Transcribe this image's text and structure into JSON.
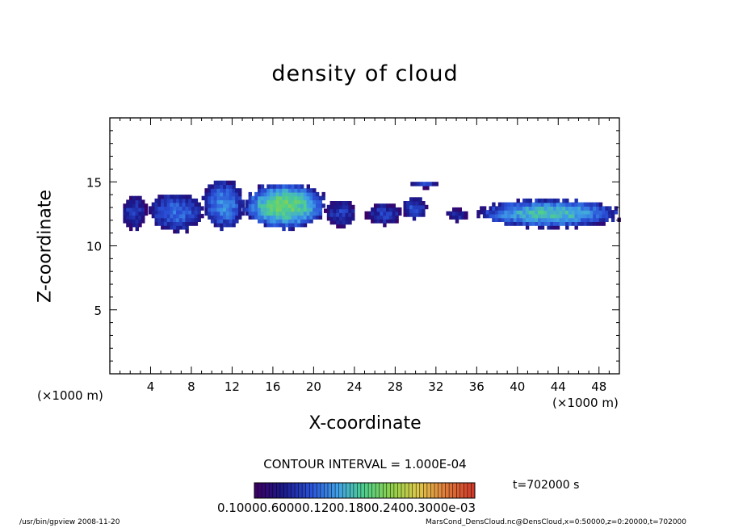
{
  "title": "density of cloud",
  "chart_data": {
    "type": "heatmap",
    "title": "density of cloud",
    "xlabel": "X-coordinate",
    "ylabel": "Z-coordinate",
    "x_unit_label": "(×1000 m)",
    "xlim": [
      0,
      50
    ],
    "ylim": [
      0,
      20
    ],
    "x_ticks": [
      4,
      8,
      12,
      16,
      20,
      24,
      28,
      32,
      36,
      40,
      44,
      48
    ],
    "y_ticks": [
      5,
      10,
      15
    ],
    "contour_interval": "CONTOUR INTERVAL = 1.000E-04",
    "time_label": "t=702000 s",
    "colorbar_ticks": "0.10000.60000.1200.1800.2400.3000e-03",
    "colorbar_colors": [
      "#3b0066",
      "#1a1a8c",
      "#2a4fd6",
      "#3fa0e8",
      "#4fd08a",
      "#8fd04a",
      "#e0c84a",
      "#e07a3a",
      "#d03a2a"
    ],
    "cloud_regions": [
      {
        "x": [
          1.0,
          3.5
        ],
        "z": [
          11.2,
          13.8
        ],
        "peak": 0.2
      },
      {
        "x": [
          3.8,
          9.0
        ],
        "z": [
          11.0,
          14.0
        ],
        "peak": 0.3
      },
      {
        "x": [
          9.0,
          13.0
        ],
        "z": [
          11.2,
          15.0
        ],
        "peak": 0.35
      },
      {
        "x": [
          13.0,
          21.0
        ],
        "z": [
          11.2,
          14.8
        ],
        "peak": 0.55
      },
      {
        "x": [
          21.0,
          24.0
        ],
        "z": [
          11.4,
          13.5
        ],
        "peak": 0.2
      },
      {
        "x": [
          25.0,
          28.5
        ],
        "z": [
          11.5,
          13.2
        ],
        "peak": 0.2
      },
      {
        "x": [
          28.5,
          31.0
        ],
        "z": [
          12.0,
          13.6
        ],
        "peak": 0.25
      },
      {
        "x": [
          29.5,
          32.0
        ],
        "z": [
          14.4,
          15.0
        ],
        "peak": 0.25
      },
      {
        "x": [
          33.0,
          35.0
        ],
        "z": [
          11.8,
          12.8
        ],
        "peak": 0.15
      },
      {
        "x": [
          36.0,
          50.0
        ],
        "z": [
          11.3,
          13.5
        ],
        "peak": 0.45
      }
    ]
  },
  "footer": {
    "left": "/usr/bin/gpview   2008-11-20",
    "right": "MarsCond_DensCloud.nc@DensCloud,x=0:50000,z=0:20000,t=702000"
  }
}
